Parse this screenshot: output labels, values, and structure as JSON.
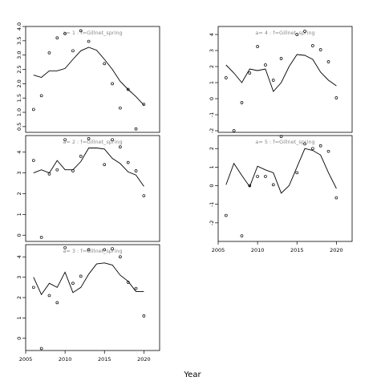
{
  "chart_data": {
    "type": "line",
    "xlabel": "Year",
    "panels": [
      {
        "title": "a= 1  :  f=Gillnet_spring",
        "xlim": [
          2005,
          2022
        ],
        "ylim": [
          0.3,
          4.0
        ],
        "yticks": [
          0.5,
          1.0,
          1.5,
          2.0,
          2.5,
          3.0,
          3.5,
          4.0
        ],
        "ytick_labels": [
          "0.5",
          "1.0",
          "1.5",
          "2.0",
          "2.5",
          "3.0",
          "3.5",
          "4.0"
        ],
        "xticks": [],
        "xtick_labels": [],
        "line_x": [
          2006,
          2007,
          2008,
          2009,
          2010,
          2011,
          2012,
          2013,
          2014,
          2015,
          2016,
          2017,
          2018,
          2019,
          2020
        ],
        "line_y": [
          2.3,
          2.22,
          2.45,
          2.45,
          2.53,
          2.85,
          3.15,
          3.27,
          3.17,
          2.85,
          2.5,
          2.08,
          1.8,
          1.55,
          1.25
        ],
        "points": [
          [
            2006,
            1.1
          ],
          [
            2007,
            1.58
          ],
          [
            2008,
            3.08
          ],
          [
            2009,
            3.6
          ],
          [
            2010,
            3.75
          ],
          [
            2011,
            3.15
          ],
          [
            2012,
            3.85
          ],
          [
            2013,
            3.48
          ],
          [
            2015,
            2.7
          ],
          [
            2016,
            2.0
          ],
          [
            2017,
            1.15
          ],
          [
            2018,
            1.8
          ],
          [
            2019,
            0.42
          ],
          [
            2020,
            1.28
          ]
        ]
      },
      {
        "title": "a= 2  :  f=Gillnet_spring",
        "xlim": [
          2005,
          2022
        ],
        "ylim": [
          -0.3,
          4.8
        ],
        "yticks": [
          0,
          1,
          2,
          3,
          4
        ],
        "ytick_labels": [
          "0",
          "1",
          "2",
          "3",
          "4"
        ],
        "xticks": [],
        "xtick_labels": [],
        "line_x": [
          2006,
          2007,
          2008,
          2009,
          2010,
          2011,
          2012,
          2013,
          2014,
          2015,
          2016,
          2017,
          2018,
          2019,
          2020
        ],
        "line_y": [
          3.0,
          3.15,
          3.0,
          3.6,
          3.15,
          3.15,
          3.55,
          4.2,
          4.2,
          4.15,
          3.7,
          3.45,
          3.05,
          2.9,
          2.35
        ],
        "points": [
          [
            2006,
            3.6
          ],
          [
            2007,
            -0.1
          ],
          [
            2008,
            2.95
          ],
          [
            2009,
            3.15
          ],
          [
            2010,
            4.6
          ],
          [
            2011,
            3.1
          ],
          [
            2012,
            3.8
          ],
          [
            2013,
            4.65
          ],
          [
            2015,
            3.4
          ],
          [
            2016,
            4.6
          ],
          [
            2017,
            4.25
          ],
          [
            2018,
            3.5
          ],
          [
            2019,
            3.1
          ],
          [
            2020,
            1.9
          ]
        ]
      },
      {
        "title": "a= 3  :  f=Gillnet_spring",
        "xlim": [
          2005,
          2022
        ],
        "ylim": [
          -0.6,
          4.6
        ],
        "yticks": [
          0,
          1,
          2,
          3,
          4
        ],
        "ytick_labels": [
          "0",
          "1",
          "2",
          "3",
          "4"
        ],
        "xticks": [
          2005,
          2010,
          2015,
          2020
        ],
        "xtick_labels": [
          "2005",
          "2010",
          "2015",
          "2020"
        ],
        "line_x": [
          2006,
          2007,
          2008,
          2009,
          2010,
          2011,
          2012,
          2013,
          2014,
          2015,
          2016,
          2017,
          2018,
          2019,
          2020
        ],
        "line_y": [
          3.0,
          2.15,
          2.7,
          2.5,
          3.25,
          2.25,
          2.5,
          3.15,
          3.65,
          3.7,
          3.6,
          3.1,
          2.8,
          2.3,
          2.3
        ],
        "points": [
          [
            2006,
            2.5
          ],
          [
            2007,
            -0.5
          ],
          [
            2008,
            2.1
          ],
          [
            2009,
            1.75
          ],
          [
            2010,
            4.45
          ],
          [
            2011,
            2.7
          ],
          [
            2012,
            3.05
          ],
          [
            2013,
            4.35
          ],
          [
            2015,
            4.35
          ],
          [
            2016,
            4.4
          ],
          [
            2017,
            4.0
          ],
          [
            2018,
            2.75
          ],
          [
            2019,
            2.45
          ],
          [
            2020,
            1.1
          ]
        ]
      },
      {
        "title": "a= 4  :  f=Gillnet_spring",
        "xlim": [
          2005,
          2022
        ],
        "ylim": [
          -2.1,
          4.5
        ],
        "yticks": [
          -2,
          -1,
          0,
          1,
          2,
          3,
          4
        ],
        "ytick_labels": [
          "-2",
          "-1",
          "0",
          "1",
          "2",
          "3",
          "4"
        ],
        "xticks": [],
        "xtick_labels": [],
        "line_x": [
          2006,
          2007,
          2008,
          2009,
          2010,
          2011,
          2012,
          2013,
          2014,
          2015,
          2016,
          2017,
          2018,
          2019,
          2020
        ],
        "line_y": [
          2.1,
          1.6,
          1.0,
          1.85,
          1.75,
          1.85,
          0.45,
          1.0,
          2.0,
          2.75,
          2.7,
          2.45,
          1.65,
          1.15,
          0.8
        ],
        "points": [
          [
            2006,
            1.3
          ],
          [
            2007,
            -2.0
          ],
          [
            2008,
            -0.25
          ],
          [
            2009,
            1.6
          ],
          [
            2010,
            3.25
          ],
          [
            2011,
            2.1
          ],
          [
            2012,
            1.15
          ],
          [
            2013,
            2.5
          ],
          [
            2015,
            4.0
          ],
          [
            2016,
            4.2
          ],
          [
            2017,
            3.3
          ],
          [
            2018,
            3.05
          ],
          [
            2019,
            2.3
          ],
          [
            2020,
            0.05
          ]
        ]
      },
      {
        "title": "a= 5  :  f=Gillnet_spring",
        "xlim": [
          2005,
          2022
        ],
        "ylim": [
          -3.0,
          2.7
        ],
        "yticks": [
          -2,
          -1,
          0,
          1,
          2
        ],
        "ytick_labels": [
          "-2",
          "-1",
          "0",
          "1",
          "2"
        ],
        "xticks": [
          2005,
          2010,
          2015,
          2020
        ],
        "xtick_labels": [
          "2005",
          "2010",
          "2015",
          "2020"
        ],
        "line_x": [
          2006,
          2007,
          2008,
          2009,
          2010,
          2011,
          2012,
          2013,
          2014,
          2015,
          2016,
          2017,
          2018,
          2019,
          2020
        ],
        "line_y": [
          0.05,
          1.2,
          0.55,
          -0.05,
          1.05,
          0.85,
          0.7,
          -0.4,
          0.0,
          1.0,
          2.0,
          1.9,
          1.65,
          0.7,
          -0.15
        ],
        "points": [
          [
            2006,
            -1.6
          ],
          [
            2008,
            -2.7
          ],
          [
            2009,
            0.0
          ],
          [
            2010,
            0.5
          ],
          [
            2011,
            0.5
          ],
          [
            2012,
            0.05
          ],
          [
            2013,
            2.65
          ],
          [
            2015,
            0.7
          ],
          [
            2016,
            2.25
          ],
          [
            2017,
            2.0
          ],
          [
            2018,
            2.15
          ],
          [
            2019,
            1.85
          ],
          [
            2020,
            -0.65
          ]
        ]
      }
    ]
  }
}
